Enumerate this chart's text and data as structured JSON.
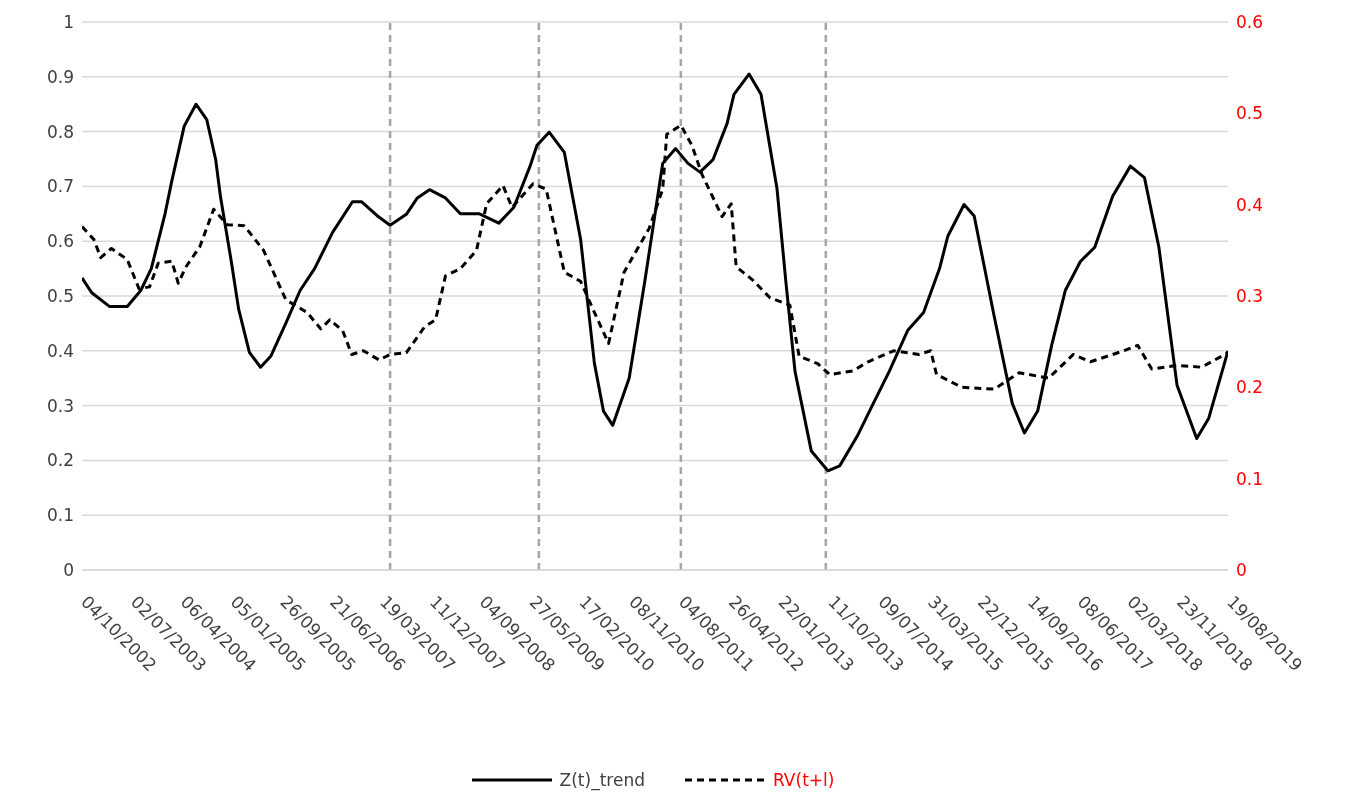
{
  "chart_data": {
    "type": "line",
    "xlim": [
      "2002-10-04",
      "2019-08-19"
    ],
    "xticks": [
      {
        "value": "2002-10-04",
        "label": "04/10/2002"
      },
      {
        "value": "2003-07-02",
        "label": "02/07/2003"
      },
      {
        "value": "2004-04-06",
        "label": "06/04/2004"
      },
      {
        "value": "2005-01-05",
        "label": "05/01/2005"
      },
      {
        "value": "2005-09-26",
        "label": "26/09/2005"
      },
      {
        "value": "2006-06-21",
        "label": "21/06/2006"
      },
      {
        "value": "2007-03-19",
        "label": "19/03/2007"
      },
      {
        "value": "2007-12-11",
        "label": "11/12/2007"
      },
      {
        "value": "2008-09-04",
        "label": "04/09/2008"
      },
      {
        "value": "2009-05-27",
        "label": "27/05/2009"
      },
      {
        "value": "2010-02-17",
        "label": "17/02/2010"
      },
      {
        "value": "2010-11-08",
        "label": "08/11/2010"
      },
      {
        "value": "2011-08-04",
        "label": "04/08/2011"
      },
      {
        "value": "2012-04-26",
        "label": "26/04/2012"
      },
      {
        "value": "2013-01-22",
        "label": "22/01/2013"
      },
      {
        "value": "2013-10-11",
        "label": "11/10/2013"
      },
      {
        "value": "2014-07-09",
        "label": "09/07/2014"
      },
      {
        "value": "2015-03-31",
        "label": "31/03/2015"
      },
      {
        "value": "2015-12-22",
        "label": "22/12/2015"
      },
      {
        "value": "2016-09-14",
        "label": "14/09/2016"
      },
      {
        "value": "2017-06-08",
        "label": "08/06/2017"
      },
      {
        "value": "2018-03-02",
        "label": "02/03/2018"
      },
      {
        "value": "2018-11-23",
        "label": "23/11/2018"
      },
      {
        "value": "2019-08-19",
        "label": "19/08/2019"
      }
    ],
    "ylim": [
      0,
      1
    ],
    "yticks": [
      0,
      0.1,
      0.2,
      0.3,
      0.4,
      0.5,
      0.6,
      0.7,
      0.8,
      0.9,
      1
    ],
    "y2lim": [
      0,
      0.6
    ],
    "y2ticks": [
      0,
      0.1,
      0.2,
      0.3,
      0.4,
      0.5,
      0.6
    ],
    "grid": "y",
    "legend": "bottom",
    "ref_lines": [
      {
        "axis": "x",
        "value": "2007-05-07",
        "color": "#a6a6a6",
        "line_style": "dashed"
      },
      {
        "axis": "x",
        "value": "2009-07-11",
        "color": "#a6a6a6",
        "line_style": "dashed"
      },
      {
        "axis": "x",
        "value": "2011-08-09",
        "color": "#a6a6a6",
        "line_style": "dashed"
      },
      {
        "axis": "x",
        "value": "2013-09-22",
        "color": "#a6a6a6",
        "line_style": "dashed"
      }
    ],
    "series": [
      {
        "name": "Z(t)_trend",
        "color": "#000000",
        "line_style": "solid",
        "x": [
          "2002-10-04",
          "2002-11-26",
          "2003-03-02",
          "2003-06-07",
          "2003-08-21",
          "2003-10-19",
          "2004-01-04",
          "2004-02-11",
          "2004-04-20",
          "2004-06-24",
          "2004-08-22",
          "2004-10-10",
          "2004-11-06",
          "2005-01-04",
          "2005-02-12",
          "2005-04-10",
          "2005-06-08",
          "2005-08-01",
          "2005-10-20",
          "2006-01-05",
          "2006-03-24",
          "2006-06-29",
          "2006-10-15",
          "2006-12-03",
          "2007-02-28",
          "2007-05-07",
          "2007-08-02",
          "2007-09-30",
          "2007-12-04",
          "2008-02-28",
          "2008-05-18",
          "2008-08-29",
          "2008-12-10",
          "2009-02-28",
          "2009-05-24",
          "2009-07-01",
          "2009-09-04",
          "2009-11-24",
          "2010-02-19",
          "2010-05-03",
          "2010-06-20",
          "2010-08-08",
          "2010-11-03",
          "2011-01-28",
          "2011-05-03",
          "2011-07-12",
          "2011-09-16",
          "2011-11-19",
          "2012-01-28",
          "2012-04-12",
          "2012-05-19",
          "2012-08-09",
          "2012-10-13",
          "2013-01-08",
          "2013-02-25",
          "2013-04-13",
          "2013-07-08",
          "2013-10-03",
          "2013-12-06",
          "2014-03-11",
          "2014-06-01",
          "2014-09-01",
          "2014-12-07",
          "2015-03-02",
          "2015-05-26",
          "2015-07-09",
          "2015-10-04",
          "2015-11-27",
          "2016-03-13",
          "2016-06-18",
          "2016-08-22",
          "2016-11-01",
          "2017-01-15",
          "2017-03-29",
          "2017-06-18",
          "2017-09-03",
          "2017-12-08",
          "2018-03-13",
          "2018-05-27",
          "2018-08-12",
          "2018-11-17",
          "2019-03-03",
          "2019-05-07",
          "2019-08-19"
        ],
        "values": [
          0.533,
          0.506,
          0.481,
          0.481,
          0.51,
          0.55,
          0.65,
          0.71,
          0.81,
          0.85,
          0.822,
          0.749,
          0.68,
          0.563,
          0.476,
          0.397,
          0.37,
          0.39,
          0.45,
          0.51,
          0.55,
          0.616,
          0.672,
          0.672,
          0.646,
          0.629,
          0.649,
          0.679,
          0.694,
          0.679,
          0.65,
          0.65,
          0.633,
          0.662,
          0.736,
          0.775,
          0.799,
          0.762,
          0.603,
          0.377,
          0.29,
          0.264,
          0.35,
          0.53,
          0.742,
          0.769,
          0.742,
          0.726,
          0.749,
          0.815,
          0.868,
          0.905,
          0.868,
          0.696,
          0.523,
          0.363,
          0.217,
          0.181,
          0.19,
          0.244,
          0.3,
          0.363,
          0.437,
          0.47,
          0.55,
          0.609,
          0.667,
          0.646,
          0.463,
          0.304,
          0.25,
          0.29,
          0.41,
          0.51,
          0.563,
          0.589,
          0.682,
          0.737,
          0.716,
          0.589,
          0.337,
          0.24,
          0.277,
          0.4
        ]
      },
      {
        "name": "RV(t+l)",
        "color": "#000000",
        "line_style": "dashed",
        "axis": "y2",
        "x": [
          "2002-10-04",
          "2002-12-07",
          "2003-01-14",
          "2003-03-13",
          "2003-06-07",
          "2003-08-11",
          "2003-10-09",
          "2003-11-27",
          "2004-02-11",
          "2004-03-18",
          "2004-04-30",
          "2004-07-15",
          "2004-09-29",
          "2004-12-13",
          "2005-03-13",
          "2005-06-24",
          "2005-10-20",
          "2006-02-12",
          "2006-04-26",
          "2006-06-14",
          "2006-08-23",
          "2006-10-11",
          "2006-12-14",
          "2007-03-09",
          "2007-05-07",
          "2007-08-02",
          "2007-11-07",
          "2008-01-06",
          "2008-02-28",
          "2008-05-18",
          "2008-08-13",
          "2008-10-06",
          "2009-01-01",
          "2009-02-18",
          "2009-06-10",
          "2009-08-19",
          "2009-11-24",
          "2010-02-19",
          "2010-05-03",
          "2010-07-17",
          "2010-10-07",
          "2011-02-19",
          "2011-05-03",
          "2011-05-25",
          "2011-08-09",
          "2011-10-07",
          "2011-11-30",
          "2012-03-16",
          "2012-05-04",
          "2012-05-31",
          "2012-08-26",
          "2012-12-01",
          "2013-03-17",
          "2013-05-05",
          "2013-08-10",
          "2013-10-13",
          "2014-02-15",
          "2014-05-10",
          "2014-09-23",
          "2015-02-05",
          "2015-04-09",
          "2015-05-10",
          "2015-09-23",
          "2016-03-13",
          "2016-07-25",
          "2016-12-29",
          "2017-05-11",
          "2017-08-11",
          "2018-02-06",
          "2018-04-21",
          "2018-07-05",
          "2018-11-17",
          "2019-03-30",
          "2019-08-19"
        ],
        "values": [
          0.376,
          0.362,
          0.342,
          0.352,
          0.34,
          0.308,
          0.31,
          0.336,
          0.338,
          0.314,
          0.332,
          0.354,
          0.395,
          0.378,
          0.377,
          0.35,
          0.296,
          0.282,
          0.264,
          0.274,
          0.262,
          0.236,
          0.24,
          0.23,
          0.236,
          0.238,
          0.266,
          0.274,
          0.322,
          0.33,
          0.35,
          0.401,
          0.421,
          0.397,
          0.423,
          0.417,
          0.326,
          0.316,
          0.282,
          0.248,
          0.326,
          0.374,
          0.417,
          0.477,
          0.487,
          0.465,
          0.433,
          0.387,
          0.401,
          0.332,
          0.318,
          0.298,
          0.29,
          0.234,
          0.226,
          0.214,
          0.218,
          0.228,
          0.24,
          0.236,
          0.24,
          0.214,
          0.2,
          0.198,
          0.216,
          0.21,
          0.236,
          0.228,
          0.24,
          0.246,
          0.22,
          0.224,
          0.222,
          0.238
        ]
      }
    ]
  }
}
